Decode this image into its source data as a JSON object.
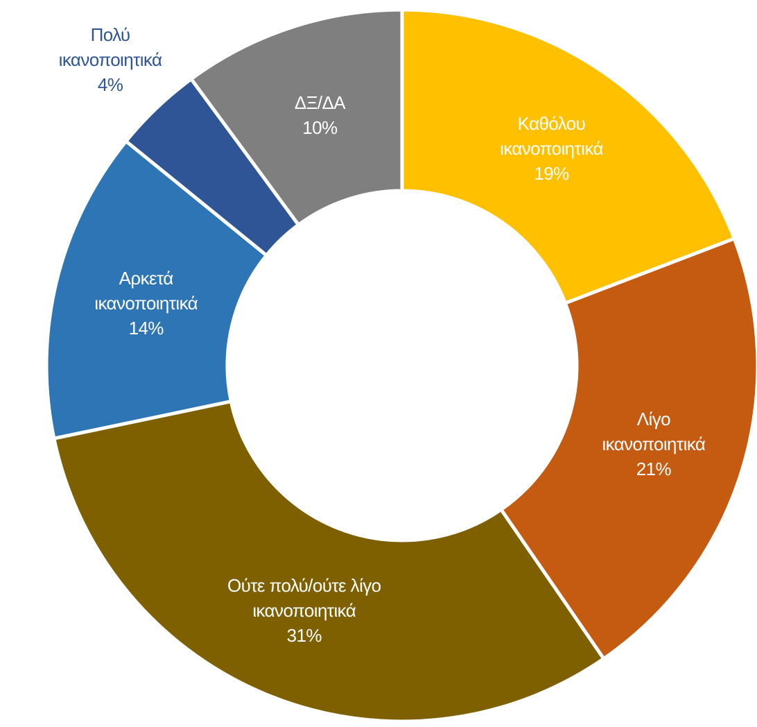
{
  "chart_data": {
    "type": "donut",
    "categories": [
      "Καθόλου\nικανοποιητικά",
      "Λίγο\nικανοποιητικά",
      "Ούτε πολύ/ούτε λίγο\nικανοποιητικά",
      "Αρκετά\nικανοποιητικά",
      "Πολύ\nικανοποιητικά",
      "ΔΞ/ΔΑ"
    ],
    "values": [
      19,
      21,
      31,
      14,
      4,
      10
    ],
    "value_labels": [
      "19%",
      "21%",
      "31%",
      "14%",
      "4%",
      "10%"
    ],
    "colors": [
      "#FFC000",
      "#C55A11",
      "#7F6000",
      "#2E75B6",
      "#2F5597",
      "#7F7F7F"
    ]
  }
}
